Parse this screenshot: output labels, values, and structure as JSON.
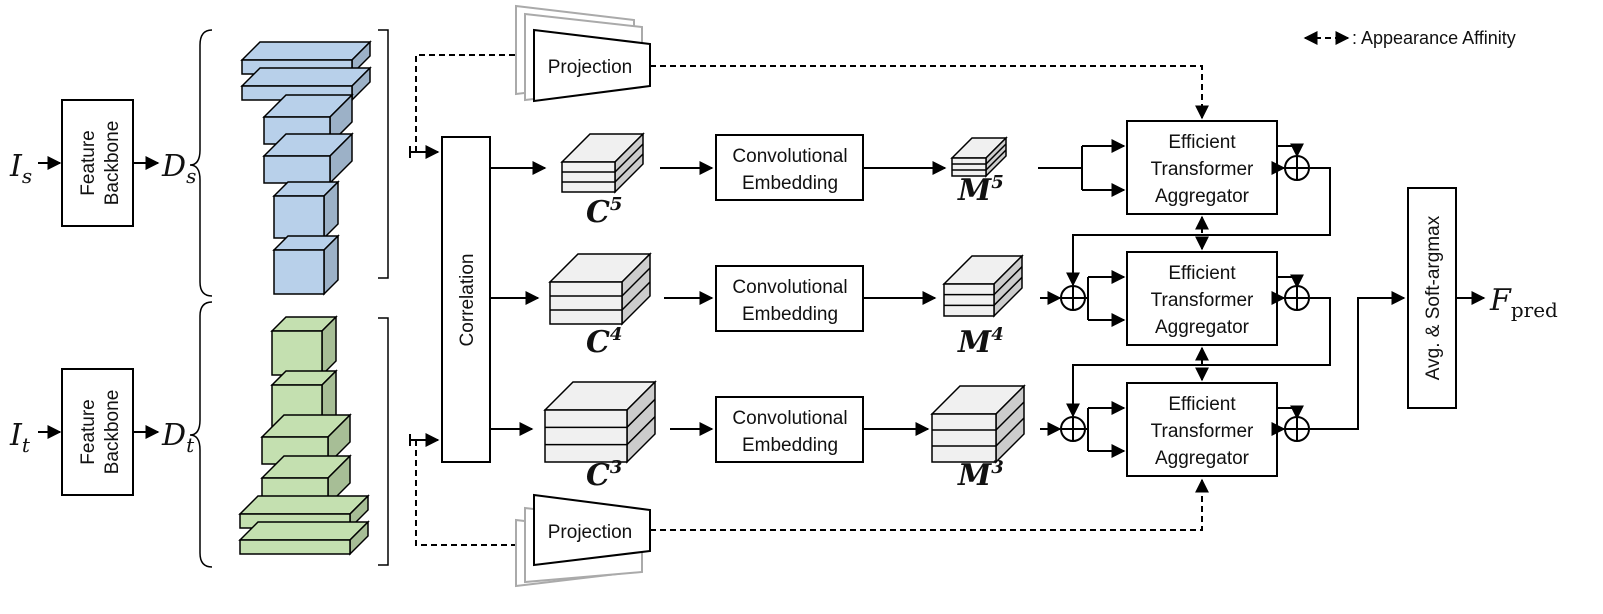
{
  "colors": {
    "blue_fill": "#b8d0ea",
    "green_fill": "#c4e0b0",
    "gray_fill": "#f0f0f0",
    "stroke": "#000000"
  },
  "inputs": {
    "source_image": "I",
    "source_sub": "s",
    "target_image": "I",
    "target_sub": "t",
    "source_desc": "D",
    "target_desc": "D"
  },
  "backbone": {
    "line1": "Feature",
    "line2": "Backbone"
  },
  "correlation_label": "Correlation",
  "projection_label": "Projection",
  "embedding": {
    "line1": "Convolutional",
    "line2": "Embedding"
  },
  "aggregator": {
    "line1": "Efficient",
    "line2": "Transformer",
    "line3": "Aggregator"
  },
  "corr_vol": {
    "symbol": "C",
    "levels": [
      "5",
      "4",
      "3"
    ]
  },
  "embed_vol": {
    "symbol": "M",
    "levels": [
      "5",
      "4",
      "3"
    ]
  },
  "output_block": "Avg. & Soft-argmax",
  "output": {
    "symbol": "F",
    "sub": "pred"
  },
  "legend": {
    "text": ": Appearance Affinity"
  },
  "plus_glyph": "+"
}
